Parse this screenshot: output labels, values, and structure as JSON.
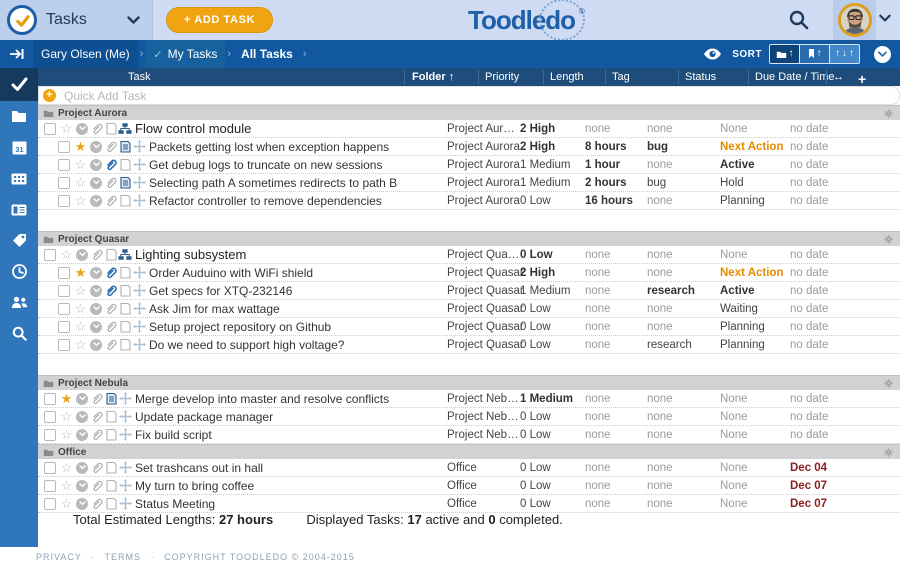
{
  "topbar": {
    "app_title": "Tasks",
    "add_task_label": "+ ADD TASK",
    "brand_part1": "Toodle",
    "brand_part2": "do",
    "brand_reg": "®"
  },
  "breadcrumb": {
    "items": [
      "Gary Olsen (Me)",
      "My Tasks",
      "All Tasks"
    ],
    "separator": "›",
    "check_glyph": "✓",
    "sort_label": "SORT",
    "sort_arrow_up": "↑",
    "sort_arrow_down": "↓"
  },
  "columns": {
    "task": "Task",
    "folder": "Folder",
    "sort_arrow": "↑",
    "priority": "Priority",
    "length": "Length",
    "tag": "Tag",
    "status": "Status",
    "due": "Due Date / Time",
    "resize_icon": "↔",
    "add_icon": "+"
  },
  "quick_add": {
    "plus": "+",
    "placeholder": "Quick Add Task"
  },
  "sections": [
    {
      "name": "Project Aurora",
      "gap_after": true,
      "tasks": [
        {
          "title": "Flow control module",
          "parent": true,
          "indent": false,
          "star": false,
          "attach": "gray",
          "note": "outline",
          "handle": "tree",
          "cells": {
            "folder": [
              "Project Aur…",
              ""
            ],
            "priority": [
              "2 High",
              "b"
            ],
            "length": [
              "none",
              "muted"
            ],
            "tag": [
              "none",
              "muted"
            ],
            "status": [
              "None",
              "muted"
            ],
            "due": [
              "no date",
              "muted"
            ]
          }
        },
        {
          "title": "Packets getting lost when exception happens",
          "parent": false,
          "indent": true,
          "star": true,
          "attach": "gray",
          "note": "filled",
          "handle": "move",
          "cells": {
            "folder": [
              "Project Aurora",
              ""
            ],
            "priority": [
              "2 High",
              "b"
            ],
            "length": [
              "8 hours",
              "b"
            ],
            "tag": [
              "bug",
              "b"
            ],
            "status": [
              "Next Action",
              "orange"
            ],
            "due": [
              "no date",
              "muted"
            ]
          }
        },
        {
          "title": "Get debug logs to truncate on new sessions",
          "parent": false,
          "indent": true,
          "star": false,
          "attach": "blue",
          "note": "outline",
          "handle": "move",
          "cells": {
            "folder": [
              "Project Aurora",
              ""
            ],
            "priority": [
              "1 Medium",
              ""
            ],
            "length": [
              "1 hour",
              "b"
            ],
            "tag": [
              "none",
              "muted"
            ],
            "status": [
              "Active",
              "b"
            ],
            "due": [
              "no date",
              "muted"
            ]
          }
        },
        {
          "title": "Selecting path A sometimes redirects to path B",
          "parent": false,
          "indent": true,
          "star": false,
          "attach": "gray",
          "note": "filled",
          "handle": "move",
          "cells": {
            "folder": [
              "Project Aurora",
              ""
            ],
            "priority": [
              "1 Medium",
              ""
            ],
            "length": [
              "2 hours",
              "b"
            ],
            "tag": [
              "bug",
              ""
            ],
            "status": [
              "Hold",
              ""
            ],
            "due": [
              "no date",
              "muted"
            ]
          }
        },
        {
          "title": "Refactor controller to remove dependencies",
          "parent": false,
          "indent": true,
          "star": false,
          "attach": "gray",
          "note": "outline",
          "handle": "move",
          "cells": {
            "folder": [
              "Project Aurora",
              ""
            ],
            "priority": [
              "0 Low",
              ""
            ],
            "length": [
              "16 hours",
              "b"
            ],
            "tag": [
              "none",
              "muted"
            ],
            "status": [
              "Planning",
              ""
            ],
            "due": [
              "no date",
              "muted"
            ]
          }
        }
      ]
    },
    {
      "name": "Project Quasar",
      "gap_after": true,
      "tasks": [
        {
          "title": "Lighting subsystem",
          "parent": true,
          "indent": false,
          "star": false,
          "attach": "gray",
          "note": "outline",
          "handle": "tree",
          "cells": {
            "folder": [
              "Project Qua…",
              ""
            ],
            "priority": [
              "0 Low",
              "b"
            ],
            "length": [
              "none",
              "muted"
            ],
            "tag": [
              "none",
              "muted"
            ],
            "status": [
              "None",
              "muted"
            ],
            "due": [
              "no date",
              "muted"
            ]
          }
        },
        {
          "title": "Order Auduino with WiFi shield",
          "parent": false,
          "indent": true,
          "star": true,
          "attach": "blue",
          "note": "outline",
          "handle": "move",
          "cells": {
            "folder": [
              "Project Quasar",
              ""
            ],
            "priority": [
              "2 High",
              "b"
            ],
            "length": [
              "none",
              "muted"
            ],
            "tag": [
              "none",
              "muted"
            ],
            "status": [
              "Next Action",
              "orange"
            ],
            "due": [
              "no date",
              "muted"
            ]
          }
        },
        {
          "title": "Get specs for XTQ-232146",
          "parent": false,
          "indent": true,
          "star": false,
          "attach": "blue",
          "note": "outline",
          "handle": "move",
          "cells": {
            "folder": [
              "Project Quasar",
              ""
            ],
            "priority": [
              "1 Medium",
              ""
            ],
            "length": [
              "none",
              "muted"
            ],
            "tag": [
              "research",
              "b"
            ],
            "status": [
              "Active",
              "b"
            ],
            "due": [
              "no date",
              "muted"
            ]
          }
        },
        {
          "title": "Ask Jim for max wattage",
          "parent": false,
          "indent": true,
          "star": false,
          "attach": "gray",
          "note": "outline",
          "handle": "move",
          "cells": {
            "folder": [
              "Project Quasar",
              ""
            ],
            "priority": [
              "0 Low",
              ""
            ],
            "length": [
              "none",
              "muted"
            ],
            "tag": [
              "none",
              "muted"
            ],
            "status": [
              "Waiting",
              ""
            ],
            "due": [
              "no date",
              "muted"
            ]
          }
        },
        {
          "title": "Setup project repository on Github",
          "parent": false,
          "indent": true,
          "star": false,
          "attach": "gray",
          "note": "outline",
          "handle": "move",
          "cells": {
            "folder": [
              "Project Quasar",
              ""
            ],
            "priority": [
              "0 Low",
              ""
            ],
            "length": [
              "none",
              "muted"
            ],
            "tag": [
              "none",
              "muted"
            ],
            "status": [
              "Planning",
              ""
            ],
            "due": [
              "no date",
              "muted"
            ]
          }
        },
        {
          "title": "Do we need to support high voltage?",
          "parent": false,
          "indent": true,
          "star": false,
          "attach": "gray",
          "note": "outline",
          "handle": "move",
          "cells": {
            "folder": [
              "Project Quasar",
              ""
            ],
            "priority": [
              "0 Low",
              ""
            ],
            "length": [
              "none",
              "muted"
            ],
            "tag": [
              "research",
              ""
            ],
            "status": [
              "Planning",
              ""
            ],
            "due": [
              "no date",
              "muted"
            ]
          }
        }
      ]
    },
    {
      "name": "Project Nebula",
      "gap_after": false,
      "tasks": [
        {
          "title": "Merge develop into master and resolve conflicts",
          "parent": false,
          "indent": false,
          "star": true,
          "attach": "gray",
          "note": "filled",
          "handle": "move",
          "cells": {
            "folder": [
              "Project Neb…",
              ""
            ],
            "priority": [
              "1 Medium",
              "b"
            ],
            "length": [
              "none",
              "muted"
            ],
            "tag": [
              "none",
              "muted"
            ],
            "status": [
              "None",
              "muted"
            ],
            "due": [
              "no date",
              "muted"
            ]
          }
        },
        {
          "title": "Update package manager",
          "parent": false,
          "indent": false,
          "star": false,
          "attach": "gray",
          "note": "outline",
          "handle": "move",
          "cells": {
            "folder": [
              "Project Neb…",
              ""
            ],
            "priority": [
              "0 Low",
              ""
            ],
            "length": [
              "none",
              "muted"
            ],
            "tag": [
              "none",
              "muted"
            ],
            "status": [
              "None",
              "muted"
            ],
            "due": [
              "no date",
              "muted"
            ]
          }
        },
        {
          "title": "Fix build script",
          "parent": false,
          "indent": false,
          "star": false,
          "attach": "gray",
          "note": "outline",
          "handle": "move",
          "cells": {
            "folder": [
              "Project Neb…",
              ""
            ],
            "priority": [
              "0 Low",
              ""
            ],
            "length": [
              "none",
              "muted"
            ],
            "tag": [
              "none",
              "muted"
            ],
            "status": [
              "None",
              "muted"
            ],
            "due": [
              "no date",
              "muted"
            ]
          }
        }
      ]
    },
    {
      "name": "Office",
      "gap_after": false,
      "tasks": [
        {
          "title": "Set trashcans out in hall",
          "parent": false,
          "indent": false,
          "star": false,
          "attach": "gray",
          "note": "outline",
          "handle": "move",
          "cells": {
            "folder": [
              "Office",
              ""
            ],
            "priority": [
              "0 Low",
              ""
            ],
            "length": [
              "none",
              "muted"
            ],
            "tag": [
              "none",
              "muted"
            ],
            "status": [
              "None",
              "muted"
            ],
            "due": [
              "Dec 04",
              "red"
            ]
          }
        },
        {
          "title": "My turn to bring coffee",
          "parent": false,
          "indent": false,
          "star": false,
          "attach": "gray",
          "note": "outline",
          "handle": "move",
          "cells": {
            "folder": [
              "Office",
              ""
            ],
            "priority": [
              "0 Low",
              ""
            ],
            "length": [
              "none",
              "muted"
            ],
            "tag": [
              "none",
              "muted"
            ],
            "status": [
              "None",
              "muted"
            ],
            "due": [
              "Dec 07",
              "red"
            ]
          }
        },
        {
          "title": "Status Meeting",
          "parent": false,
          "indent": false,
          "star": false,
          "attach": "gray",
          "note": "outline",
          "handle": "move",
          "cells": {
            "folder": [
              "Office",
              ""
            ],
            "priority": [
              "0 Low",
              ""
            ],
            "length": [
              "none",
              "muted"
            ],
            "tag": [
              "none",
              "muted"
            ],
            "status": [
              "None",
              "muted"
            ],
            "due": [
              "Dec 07",
              "red"
            ]
          }
        }
      ]
    }
  ],
  "footer": {
    "total_label": "Total Estimated Lengths:",
    "total_value": "27 hours",
    "displayed_label": "Displayed Tasks:",
    "active_count": "17",
    "active_text": "active and",
    "completed_count": "0",
    "completed_text": "completed."
  },
  "legal": {
    "privacy": "PRIVACY",
    "terms": "TERMS",
    "copyright": "COPYRIGHT TOODLEDO © 2004-2015",
    "separator": "·"
  },
  "colors": {
    "accent_orange": "#f0a412",
    "brand_blue": "#1d5fa8",
    "bar_blue": "#1158a0",
    "header_navy": "#1e4d7b",
    "sidebar_blue": "#3076ba",
    "status_orange": "#e68a00",
    "due_red": "#8c1d1d"
  }
}
